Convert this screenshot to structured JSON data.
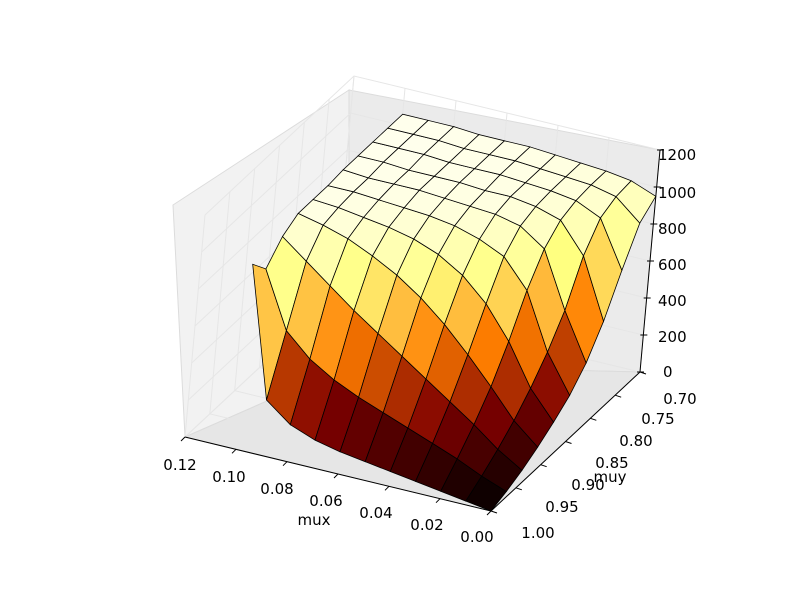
{
  "chart_data": {
    "type": "surface",
    "title": "",
    "xlabel": "mux",
    "ylabel": "muy",
    "zlabel": "",
    "x_ticks": [
      "0.12",
      "0.10",
      "0.08",
      "0.06",
      "0.04",
      "0.02",
      "0.00"
    ],
    "y_ticks": [
      "0.70",
      "0.75",
      "0.80",
      "0.85",
      "0.90",
      "0.95",
      "1.00"
    ],
    "z_ticks": [
      "0",
      "200",
      "400",
      "600",
      "800",
      "1000",
      "1200"
    ],
    "xlim": [
      0.0,
      0.12
    ],
    "ylim": [
      0.7,
      1.0
    ],
    "zlim": [
      0,
      1200
    ],
    "grid": true,
    "colormap": "afmhot",
    "edge_color": "#000000",
    "x": [
      0.0,
      0.01,
      0.02,
      0.03,
      0.04,
      0.05,
      0.06,
      0.07,
      0.08,
      0.09,
      0.1
    ],
    "y": [
      0.7,
      0.73,
      0.76,
      0.79,
      0.82,
      0.85,
      0.88,
      0.91,
      0.94,
      0.97,
      1.0
    ],
    "z": [
      [
        950,
        1000,
        1020,
        1030,
        1040,
        1050,
        1050,
        1050,
        1060,
        1060,
        1060
      ],
      [
        880,
        990,
        1020,
        1030,
        1040,
        1050,
        1050,
        1050,
        1060,
        1060,
        1060
      ],
      [
        700,
        950,
        1010,
        1030,
        1040,
        1050,
        1050,
        1050,
        1060,
        1060,
        1060
      ],
      [
        500,
        820,
        980,
        1020,
        1040,
        1040,
        1050,
        1050,
        1050,
        1060,
        1060
      ],
      [
        350,
        600,
        900,
        990,
        1020,
        1030,
        1040,
        1050,
        1050,
        1050,
        1060
      ],
      [
        250,
        450,
        750,
        900,
        960,
        1000,
        1020,
        1030,
        1040,
        1050,
        1050
      ],
      [
        180,
        330,
        550,
        720,
        840,
        920,
        970,
        1000,
        1020,
        1040,
        1050
      ],
      [
        120,
        230,
        380,
        520,
        650,
        760,
        850,
        920,
        980,
        1020,
        1050
      ],
      [
        70,
        150,
        250,
        340,
        430,
        520,
        610,
        700,
        800,
        900,
        1000
      ],
      [
        30,
        80,
        140,
        190,
        240,
        290,
        340,
        400,
        480,
        600,
        900
      ],
      [
        0,
        20,
        40,
        60,
        80,
        100,
        120,
        150,
        200,
        300,
        1000
      ]
    ]
  }
}
